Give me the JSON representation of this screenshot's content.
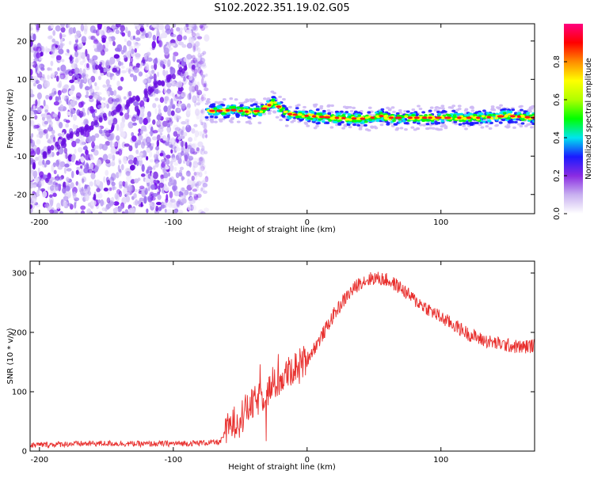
{
  "title": "S102.2022.351.19.02.G05",
  "colors": {
    "snr_line": "#e8302e",
    "spectro_low": "#cdb8f5",
    "spectro_mid": "#7a18ee",
    "colorbar": [
      "#ffffff",
      "#c8b0f0",
      "#8a2be2",
      "#1a1aff",
      "#00e5ee",
      "#00ff00",
      "#b0ff00",
      "#ffff00",
      "#ff8c00",
      "#ff0000",
      "#ff0080"
    ]
  },
  "chart_data": [
    {
      "type": "heatmap",
      "xlabel": "Height of straight line (km)",
      "ylabel": "Frequency (Hz)",
      "xlim": [
        -207,
        170
      ],
      "ylim": [
        -25,
        24.5
      ],
      "xticks": [
        -200,
        -100,
        0,
        100
      ],
      "yticks": [
        20,
        10,
        0,
        -10,
        -20
      ],
      "colorbar": {
        "label": "Normalized spectral amplitude",
        "range": [
          0,
          1
        ],
        "ticks": [
          "0.0",
          "0.2",
          "0.4",
          "0.6",
          "0.8"
        ],
        "tick_values": [
          0.0,
          0.2,
          0.4,
          0.6,
          0.8
        ]
      },
      "ridge": {
        "x": [
          -75,
          -65,
          -55,
          -45,
          -35,
          -25,
          -15,
          0,
          20,
          45,
          55,
          60,
          100,
          130,
          150,
          170
        ],
        "y": [
          1.8,
          1.8,
          2.0,
          1.6,
          1.8,
          4.0,
          1.0,
          0.5,
          0.0,
          -0.3,
          0.5,
          0.0,
          0.0,
          0.0,
          0.5,
          0.0
        ]
      },
      "noise_region": {
        "x": [
          -207,
          -75
        ],
        "y": [
          -25,
          24.5
        ]
      }
    },
    {
      "type": "line",
      "xlabel": "Height of straight line (km)",
      "ylabel": "SNR (10 * v/v)",
      "xlim": [
        -207,
        170
      ],
      "ylim": [
        0,
        320
      ],
      "xticks": [
        -200,
        -100,
        0,
        100
      ],
      "yticks": [
        0,
        100,
        200,
        300
      ],
      "series": [
        {
          "x": [
            -207,
            -180,
            -150,
            -120,
            -90,
            -65,
            -60,
            -50,
            -40,
            -30,
            -20,
            -10,
            0,
            10,
            20,
            30,
            40,
            50,
            60,
            70,
            80,
            90,
            100,
            110,
            120,
            130,
            140,
            150,
            160,
            170
          ],
          "values": [
            10,
            12,
            13,
            12,
            13,
            15,
            35,
            60,
            80,
            100,
            120,
            140,
            155,
            190,
            230,
            262,
            285,
            292,
            288,
            275,
            255,
            240,
            225,
            212,
            198,
            188,
            182,
            178,
            175,
            178
          ]
        }
      ]
    }
  ]
}
